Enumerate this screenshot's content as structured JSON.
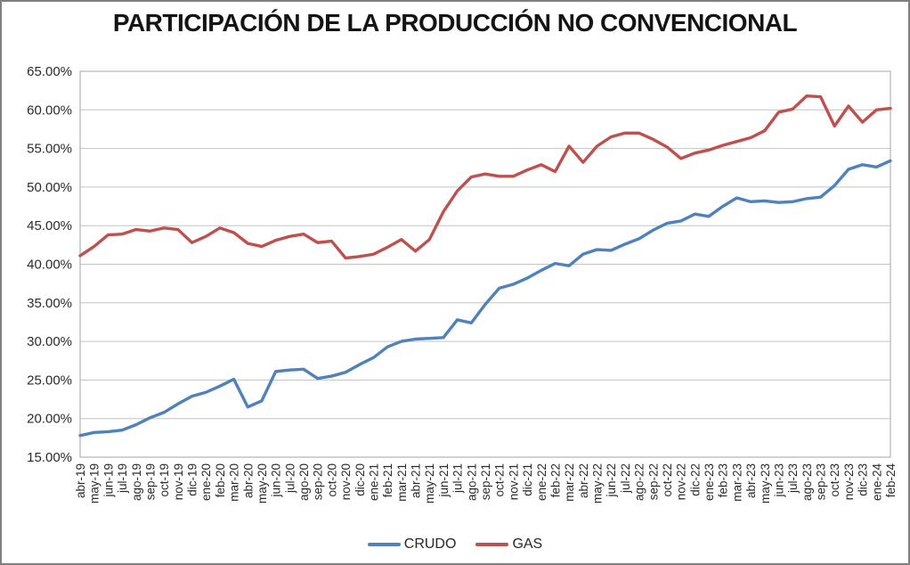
{
  "window": {
    "background": "#FFFFFF",
    "frame_border_color": "#7F7F7F"
  },
  "chart_data": {
    "type": "line",
    "title": "PARTICIPACIÓN DE LA PRODUCCIÓN NO CONVENCIONAL",
    "categories": [
      "abr-19",
      "may-19",
      "jun-19",
      "jul-19",
      "ago-19",
      "sep-19",
      "oct-19",
      "nov-19",
      "dic-19",
      "ene-20",
      "feb-20",
      "mar-20",
      "abr-20",
      "may-20",
      "jun-20",
      "jul-20",
      "ago-20",
      "sep-20",
      "oct-20",
      "nov-20",
      "dic-20",
      "ene-21",
      "feb-21",
      "mar-21",
      "abr-21",
      "may-21",
      "jun-21",
      "jul-21",
      "ago-21",
      "sep-21",
      "oct-21",
      "nov-21",
      "dic-21",
      "ene-22",
      "feb-22",
      "mar-22",
      "abr-22",
      "may-22",
      "jun-22",
      "jul-22",
      "ago-22",
      "sep-22",
      "oct-22",
      "nov-22",
      "dic-22",
      "ene-23",
      "feb-23",
      "mar-23",
      "abr-23",
      "may-23",
      "jun-23",
      "jul-23",
      "ago-23",
      "sep-23",
      "oct-23",
      "nov-23",
      "dic-23",
      "ene-24",
      "feb-24"
    ],
    "series": [
      {
        "name": "CRUDO",
        "color": "#4F81BD",
        "values": [
          17.8,
          18.2,
          18.3,
          18.5,
          19.2,
          20.1,
          20.8,
          21.9,
          22.9,
          23.4,
          24.2,
          25.1,
          21.5,
          22.3,
          26.1,
          26.3,
          26.4,
          25.2,
          25.5,
          26.0,
          27.0,
          27.9,
          29.3,
          30.0,
          30.3,
          30.4,
          30.5,
          32.8,
          32.4,
          34.8,
          36.9,
          37.4,
          38.2,
          39.2,
          40.1,
          39.8,
          41.3,
          41.9,
          41.8,
          42.6,
          43.3,
          44.4,
          45.3,
          45.6,
          46.5,
          46.2,
          47.5,
          48.6,
          48.1,
          48.2,
          48.0,
          48.1,
          48.5,
          48.7,
          50.2,
          52.3,
          52.9,
          52.6,
          53.4
        ]
      },
      {
        "name": "GAS",
        "color": "#C0504D",
        "values": [
          41.1,
          42.3,
          43.8,
          43.9,
          44.5,
          44.3,
          44.7,
          44.5,
          42.8,
          43.6,
          44.7,
          44.1,
          42.7,
          42.3,
          43.1,
          43.6,
          43.9,
          42.8,
          43.0,
          40.8,
          41.0,
          41.3,
          42.2,
          43.2,
          41.7,
          43.2,
          46.8,
          49.5,
          51.3,
          51.7,
          51.4,
          51.4,
          52.2,
          52.9,
          52.0,
          55.3,
          53.2,
          55.3,
          56.5,
          57.0,
          57.0,
          56.2,
          55.2,
          53.7,
          54.4,
          54.8,
          55.4,
          55.9,
          56.4,
          57.3,
          59.7,
          60.1,
          61.8,
          61.7,
          57.9,
          60.5,
          58.4,
          60.0,
          60.2
        ]
      }
    ],
    "y_axis": {
      "min": 15,
      "max": 65,
      "step": 5,
      "tick_labels": [
        "65.00%",
        "60.00%",
        "55.00%",
        "50.00%",
        "45.00%",
        "40.00%",
        "35.00%",
        "30.00%",
        "25.00%",
        "20.00%",
        "15.00%"
      ]
    },
    "grid": true,
    "gridline_color": "#C3C3C3",
    "plot_border_color": "#A6A6A6",
    "legend_position": "bottom"
  }
}
